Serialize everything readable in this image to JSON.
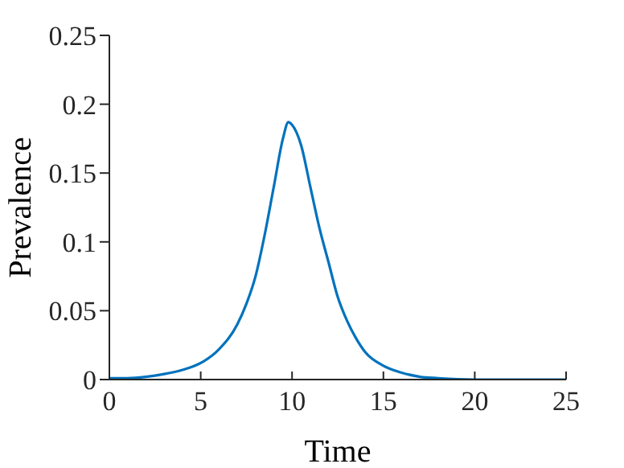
{
  "chart_data": {
    "type": "line",
    "xlabel": "Time",
    "ylabel": "Prevalence",
    "x": [
      0,
      1,
      2,
      3,
      4,
      5,
      6,
      7,
      7.5,
      8,
      8.5,
      9,
      9.5,
      9.8,
      10,
      10.5,
      11,
      11.5,
      12,
      12.5,
      13,
      13.5,
      14,
      15,
      16,
      17,
      18,
      20,
      22,
      25
    ],
    "series": [
      {
        "color": "#0072bd",
        "values": [
          0.001,
          0.001,
          0.002,
          0.004,
          0.007,
          0.012,
          0.022,
          0.04,
          0.055,
          0.075,
          0.105,
          0.14,
          0.175,
          0.187,
          0.185,
          0.17,
          0.14,
          0.11,
          0.085,
          0.06,
          0.043,
          0.03,
          0.02,
          0.01,
          0.005,
          0.002,
          0.001,
          0,
          0,
          0
        ]
      }
    ],
    "xlim": [
      0,
      25
    ],
    "xticks": [
      0,
      5,
      10,
      15,
      20,
      25
    ],
    "ylim": [
      0,
      0.25
    ],
    "yticks": [
      0,
      0.05,
      0.1,
      0.15,
      0.2,
      0.25
    ],
    "grid": false,
    "legend": false,
    "marker": "none",
    "line_style": "solid"
  }
}
